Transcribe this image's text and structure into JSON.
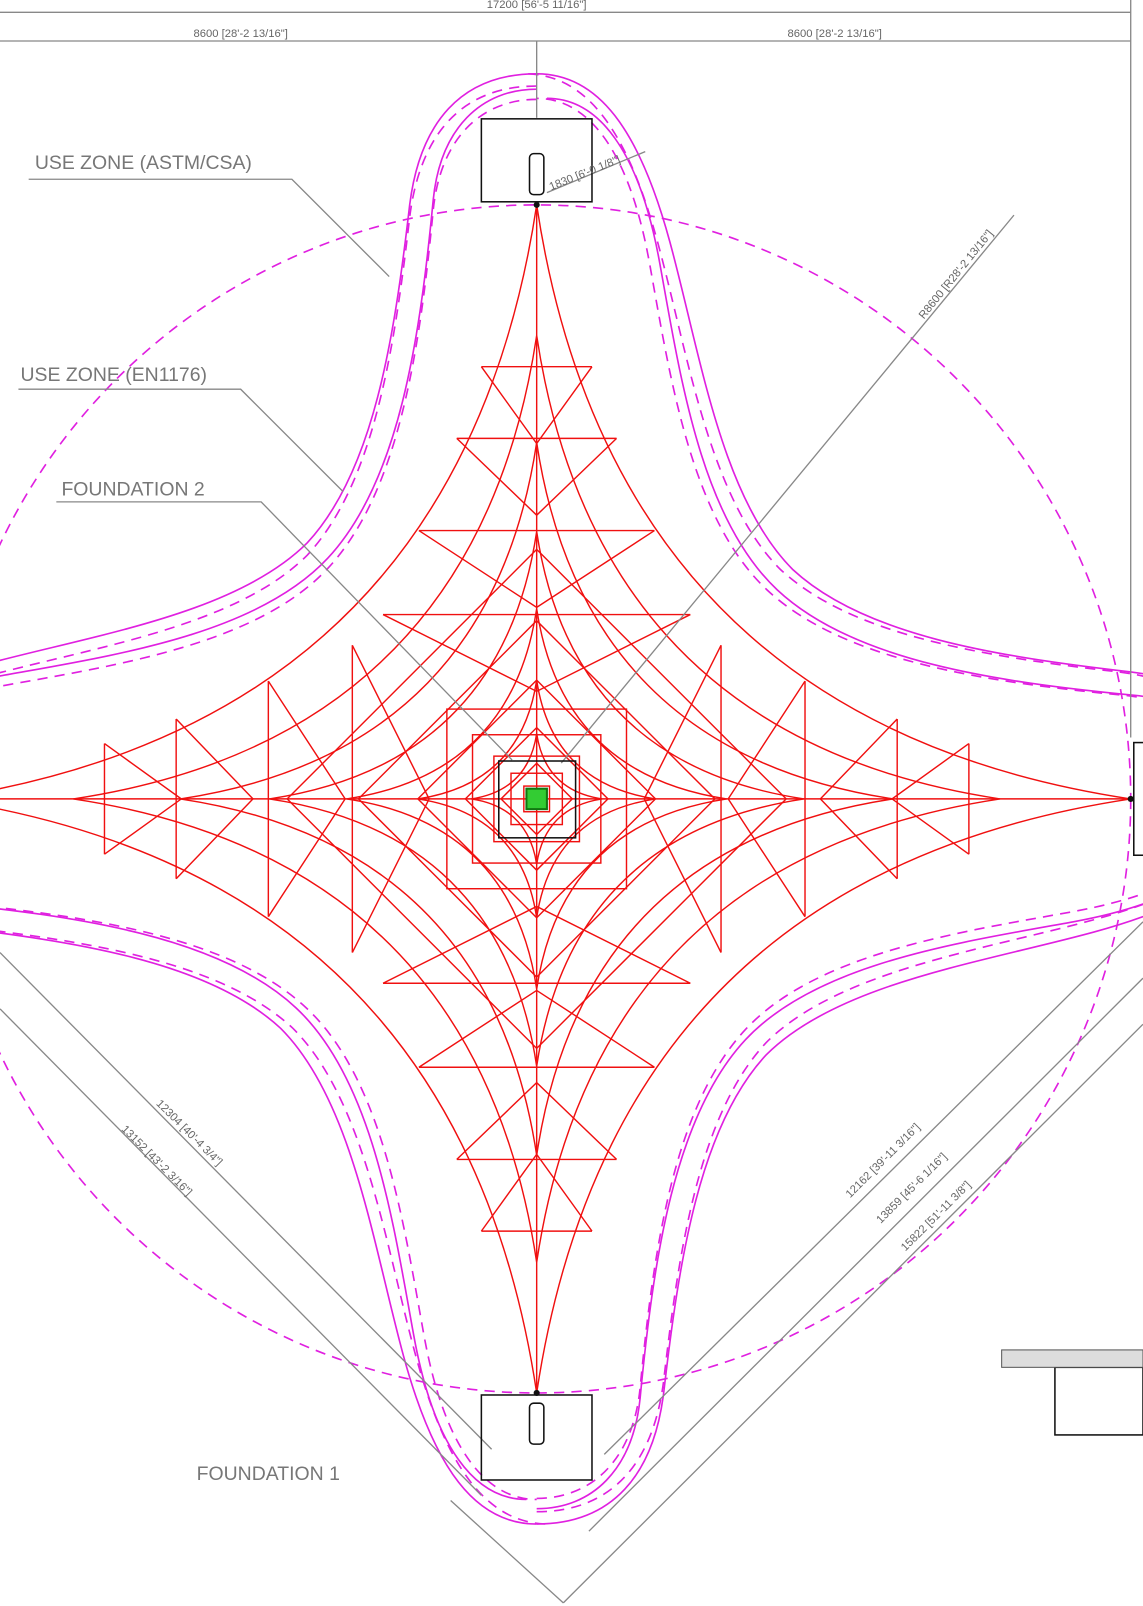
{
  "dimensions": {
    "overall": "17200 [56'-5 11/16\"]",
    "left_half": "8600 [28'-2 13/16\"]",
    "right_half": "8600 [28'-2 13/16\"]",
    "anchor": "1830 [6'-0 1/8\"]",
    "radius": "R8600 [R28'-2 13/16\"]",
    "diag_a": "12304 [40'-4 3/4\"]",
    "diag_b": "13152 [43'-2 3/16\"]",
    "diag_c": "12162 [39'-11 3/16\"]",
    "diag_d": "13859 [45'-6 1/16\"]",
    "diag_e": "15822 [51'-11 3/8\"]"
  },
  "labels": {
    "use_zone_astm": "USE ZONE (ASTM/CSA)",
    "use_zone_en": "USE ZONE (EN1176)",
    "foundation_2": "FOUNDATION 2",
    "foundation_1": "FOUNDATION 1"
  }
}
